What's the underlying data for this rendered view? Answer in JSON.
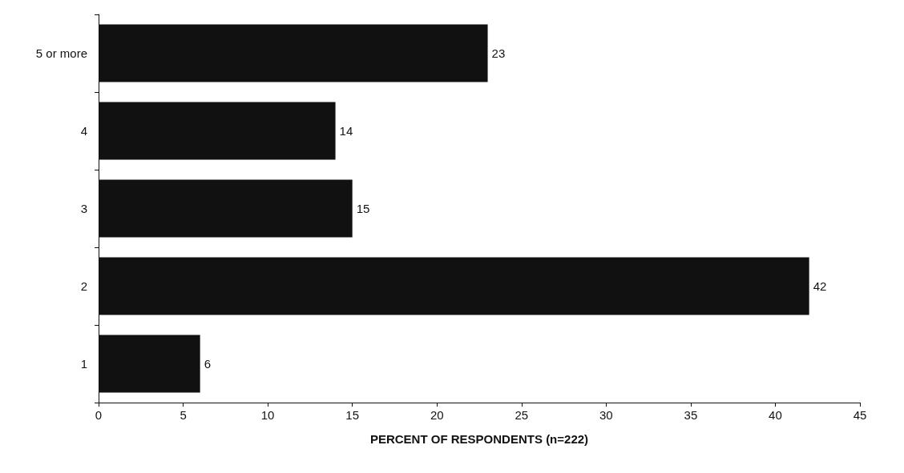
{
  "chart_data": {
    "type": "bar",
    "orientation": "horizontal",
    "categories": [
      "5 or more",
      "4",
      "3",
      "2",
      "1"
    ],
    "values": [
      23,
      14,
      15,
      42,
      6
    ],
    "color": "#111111",
    "xlim": [
      0,
      45
    ],
    "xticks": [
      0,
      5,
      10,
      15,
      20,
      25,
      30,
      35,
      40,
      45
    ],
    "xlabel": "PERCENT OF RESPONDENTS (n=222)",
    "data_labels": true,
    "grid": false
  }
}
